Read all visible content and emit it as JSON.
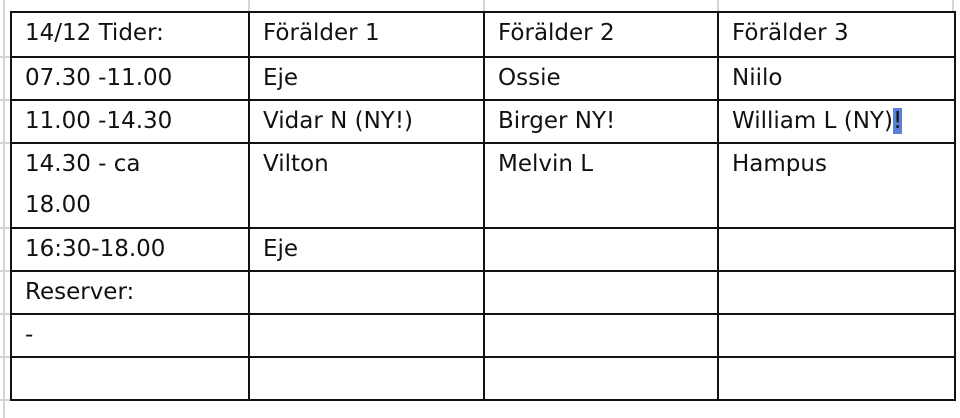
{
  "table": {
    "header": [
      "14/12 Tider:",
      "Förälder 1",
      "Förälder 2",
      "Förälder 3"
    ],
    "rows": [
      [
        "07.30 -11.00",
        "Eje",
        "Ossie",
        "Niilo"
      ],
      [
        "11.00 -14.30",
        "Vidar N (NY!)",
        "Birger NY!",
        "William L (NY)"
      ],
      [
        "14.30 - ca 18.00",
        "Vilton",
        "Melvin L",
        "Hampus"
      ],
      [
        "16:30-18.00",
        "Eje",
        "",
        ""
      ],
      [
        "Reserver:",
        "",
        "",
        ""
      ],
      [
        "-",
        "",
        "",
        ""
      ],
      [
        "",
        "",
        "",
        ""
      ]
    ],
    "selected_text": "!",
    "selection_color": "#5b7fd6"
  }
}
